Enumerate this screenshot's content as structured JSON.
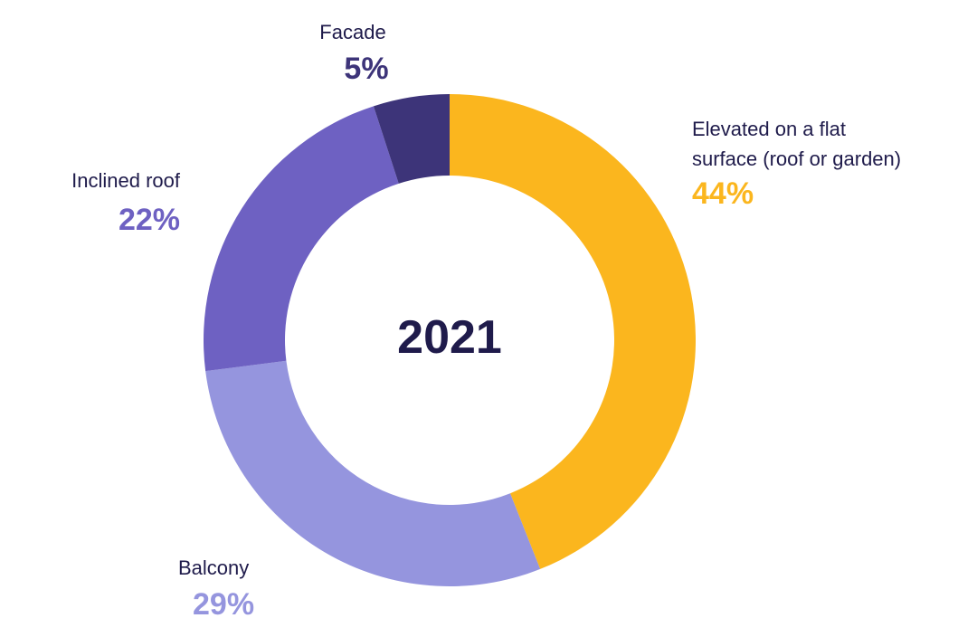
{
  "chart_data": {
    "type": "pie",
    "title": "",
    "center_label": "2021",
    "slices": [
      {
        "name": "Elevated on a flat surface (roof or garden)",
        "label_lines": [
          "Elevated on a flat",
          "surface (roof or garden)"
        ],
        "value": 44,
        "display": "44%",
        "color": "#fbb61e"
      },
      {
        "name": "Balcony",
        "label_lines": [
          "Balcony"
        ],
        "value": 29,
        "display": "29%",
        "color": "#9595de"
      },
      {
        "name": "Inclined roof",
        "label_lines": [
          "Inclined roof"
        ],
        "value": 22,
        "display": "22%",
        "color": "#6e61c2"
      },
      {
        "name": "Facade",
        "label_lines": [
          "Facade"
        ],
        "value": 5,
        "display": "5%",
        "color": "#3d3479"
      }
    ],
    "colors": {
      "text_dark": "#1f1b4b"
    }
  }
}
